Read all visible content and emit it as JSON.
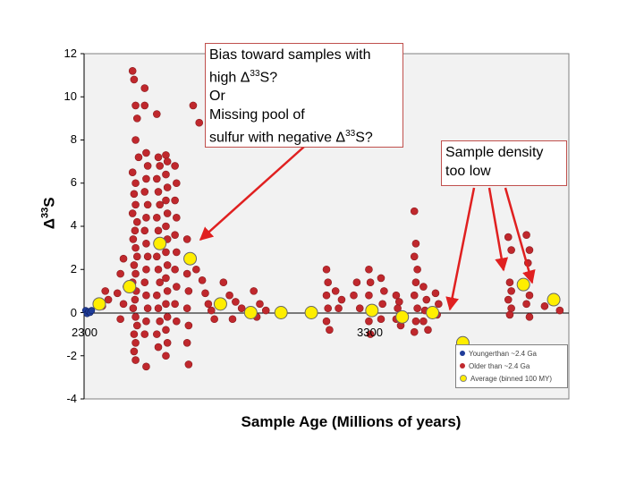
{
  "chart_data": {
    "type": "scatter",
    "xlabel": "Sample Age (Millions of years)",
    "ylabel_main": "Δ",
    "ylabel_sup": "33",
    "ylabel_tail": "S",
    "xlim": [
      2300,
      3900
    ],
    "ylim": [
      -4,
      12
    ],
    "yticks": [
      "12",
      "10",
      "8",
      "6",
      "4",
      "2",
      "0",
      "-2",
      "-4"
    ],
    "xtick_labels": [
      {
        "x": 2300,
        "label": "2300"
      },
      {
        "x": 3300,
        "label": "3300"
      }
    ],
    "grid": false,
    "legend_position": "bottom-right",
    "series": [
      {
        "name": "Youngerthan ~2.4 Ga",
        "color": "#1f3c99",
        "points": [
          [
            2305,
            0.1
          ],
          [
            2310,
            -0.05
          ],
          [
            2315,
            0.05
          ],
          [
            2320,
            0
          ],
          [
            2325,
            0.1
          ]
        ]
      },
      {
        "name": "Older than ~2.4 Ga",
        "color": "#c0282d",
        "points": [
          [
            2460,
            11.2
          ],
          [
            2465,
            10.8
          ],
          [
            2470,
            9.6
          ],
          [
            2475,
            9.0
          ],
          [
            2470,
            8.0
          ],
          [
            2480,
            7.2
          ],
          [
            2460,
            6.5
          ],
          [
            2470,
            6.0
          ],
          [
            2465,
            5.5
          ],
          [
            2470,
            5.0
          ],
          [
            2460,
            4.6
          ],
          [
            2475,
            4.2
          ],
          [
            2468,
            3.8
          ],
          [
            2462,
            3.4
          ],
          [
            2470,
            3.0
          ],
          [
            2475,
            2.6
          ],
          [
            2465,
            2.2
          ],
          [
            2470,
            1.8
          ],
          [
            2460,
            1.4
          ],
          [
            2472,
            1.0
          ],
          [
            2468,
            0.6
          ],
          [
            2462,
            0.2
          ],
          [
            2470,
            -0.2
          ],
          [
            2475,
            -0.6
          ],
          [
            2465,
            -1.0
          ],
          [
            2470,
            -1.4
          ],
          [
            2465,
            -1.8
          ],
          [
            2470,
            -2.2
          ],
          [
            2500,
            10.4
          ],
          [
            2500,
            9.6
          ],
          [
            2505,
            7.4
          ],
          [
            2510,
            6.8
          ],
          [
            2505,
            6.2
          ],
          [
            2500,
            5.6
          ],
          [
            2510,
            5.0
          ],
          [
            2505,
            4.4
          ],
          [
            2500,
            3.8
          ],
          [
            2505,
            3.2
          ],
          [
            2510,
            2.6
          ],
          [
            2505,
            2.0
          ],
          [
            2500,
            1.4
          ],
          [
            2505,
            0.8
          ],
          [
            2510,
            0.2
          ],
          [
            2505,
            -0.4
          ],
          [
            2500,
            -1.0
          ],
          [
            2505,
            -2.5
          ],
          [
            2540,
            9.2
          ],
          [
            2545,
            7.2
          ],
          [
            2550,
            6.8
          ],
          [
            2540,
            6.2
          ],
          [
            2545,
            5.6
          ],
          [
            2550,
            5.0
          ],
          [
            2540,
            4.4
          ],
          [
            2545,
            3.8
          ],
          [
            2550,
            3.2
          ],
          [
            2540,
            2.6
          ],
          [
            2545,
            2.0
          ],
          [
            2550,
            1.4
          ],
          [
            2540,
            0.8
          ],
          [
            2545,
            0.2
          ],
          [
            2550,
            -0.4
          ],
          [
            2540,
            -1.0
          ],
          [
            2545,
            -1.6
          ],
          [
            2570,
            7.3
          ],
          [
            2575,
            7.0
          ],
          [
            2570,
            6.4
          ],
          [
            2575,
            5.8
          ],
          [
            2570,
            5.2
          ],
          [
            2575,
            4.6
          ],
          [
            2570,
            4.0
          ],
          [
            2575,
            3.4
          ],
          [
            2570,
            2.8
          ],
          [
            2575,
            2.2
          ],
          [
            2570,
            1.6
          ],
          [
            2575,
            1.0
          ],
          [
            2570,
            0.4
          ],
          [
            2575,
            -0.2
          ],
          [
            2570,
            -0.8
          ],
          [
            2575,
            -1.4
          ],
          [
            2570,
            -2.0
          ],
          [
            2600,
            6.8
          ],
          [
            2605,
            6.0
          ],
          [
            2600,
            5.2
          ],
          [
            2605,
            4.4
          ],
          [
            2600,
            3.6
          ],
          [
            2605,
            2.8
          ],
          [
            2600,
            2.0
          ],
          [
            2605,
            1.2
          ],
          [
            2600,
            0.4
          ],
          [
            2605,
            -0.4
          ],
          [
            2640,
            3.4
          ],
          [
            2645,
            2.6
          ],
          [
            2640,
            1.8
          ],
          [
            2645,
            1.0
          ],
          [
            2640,
            0.2
          ],
          [
            2645,
            -0.6
          ],
          [
            2640,
            -1.4
          ],
          [
            2645,
            -2.4
          ],
          [
            2660,
            9.6
          ],
          [
            2680,
            8.8
          ],
          [
            2670,
            2.0
          ],
          [
            2690,
            1.5
          ],
          [
            2700,
            0.9
          ],
          [
            2710,
            0.4
          ],
          [
            2720,
            0.1
          ],
          [
            2730,
            -0.3
          ],
          [
            2430,
            2.5
          ],
          [
            2420,
            1.8
          ],
          [
            2440,
            1.2
          ],
          [
            2410,
            0.9
          ],
          [
            2430,
            0.4
          ],
          [
            2420,
            -0.3
          ],
          [
            2370,
            1.0
          ],
          [
            2380,
            0.6
          ],
          [
            2360,
            0.3
          ],
          [
            2760,
            1.4
          ],
          [
            2780,
            0.8
          ],
          [
            2800,
            0.5
          ],
          [
            2820,
            0.2
          ],
          [
            2790,
            -0.3
          ],
          [
            2860,
            1.0
          ],
          [
            2880,
            0.4
          ],
          [
            2900,
            0.1
          ],
          [
            2870,
            -0.2
          ],
          [
            3100,
            2.0
          ],
          [
            3105,
            1.4
          ],
          [
            3100,
            0.8
          ],
          [
            3105,
            0.2
          ],
          [
            3100,
            -0.4
          ],
          [
            3110,
            -0.8
          ],
          [
            3130,
            1.0
          ],
          [
            3150,
            0.6
          ],
          [
            3140,
            0.2
          ],
          [
            3200,
            1.4
          ],
          [
            3190,
            0.8
          ],
          [
            3210,
            0.2
          ],
          [
            3240,
            2.0
          ],
          [
            3245,
            1.4
          ],
          [
            3240,
            0.8
          ],
          [
            3245,
            0.2
          ],
          [
            3240,
            -0.4
          ],
          [
            3245,
            -1.0
          ],
          [
            3280,
            1.6
          ],
          [
            3290,
            1.0
          ],
          [
            3285,
            0.4
          ],
          [
            3280,
            -0.3
          ],
          [
            3330,
            0.8
          ],
          [
            3340,
            0.5
          ],
          [
            3335,
            0.2
          ],
          [
            3330,
            -0.3
          ],
          [
            3345,
            -0.6
          ],
          [
            3390,
            4.7
          ],
          [
            3395,
            3.2
          ],
          [
            3390,
            2.6
          ],
          [
            3400,
            2.0
          ],
          [
            3395,
            1.4
          ],
          [
            3390,
            0.8
          ],
          [
            3400,
            0.2
          ],
          [
            3395,
            -0.4
          ],
          [
            3390,
            -0.9
          ],
          [
            3420,
            1.2
          ],
          [
            3430,
            0.6
          ],
          [
            3425,
            0.1
          ],
          [
            3420,
            -0.4
          ],
          [
            3435,
            -0.8
          ],
          [
            3460,
            0.9
          ],
          [
            3470,
            0.4
          ],
          [
            3465,
            -0.1
          ],
          [
            3700,
            3.5
          ],
          [
            3710,
            2.9
          ],
          [
            3705,
            1.4
          ],
          [
            3710,
            1.0
          ],
          [
            3700,
            0.6
          ],
          [
            3710,
            0.2
          ],
          [
            3705,
            -0.1
          ],
          [
            3760,
            3.6
          ],
          [
            3770,
            2.9
          ],
          [
            3765,
            2.3
          ],
          [
            3770,
            0.8
          ],
          [
            3760,
            0.4
          ],
          [
            3770,
            -0.2
          ],
          [
            3820,
            0.3
          ],
          [
            3870,
            0.1
          ]
        ]
      },
      {
        "name": "Average (binned 100 MY)",
        "color": "#ffee00",
        "points": [
          [
            2350,
            0.4
          ],
          [
            2450,
            1.2
          ],
          [
            2550,
            3.2
          ],
          [
            2650,
            2.5
          ],
          [
            2750,
            0.4
          ],
          [
            2850,
            0.0
          ],
          [
            2950,
            0.0
          ],
          [
            3050,
            0.0
          ],
          [
            3250,
            0.1
          ],
          [
            3350,
            -0.2
          ],
          [
            3450,
            0.0
          ],
          [
            3550,
            -1.4
          ],
          [
            3750,
            1.3
          ],
          [
            3850,
            0.6
          ]
        ]
      }
    ]
  },
  "callouts": {
    "left": {
      "line1": "Bias toward samples with",
      "line2_pre": "high Δ",
      "line2_sup": "33",
      "line2_post": "S?",
      "line3": "Or",
      "line4": "Missing pool of",
      "line5_pre": "sulfur with negative Δ",
      "line5_sup": "33",
      "line5_post": "S?"
    },
    "right": {
      "line1": "Sample density",
      "line2": "too low"
    }
  },
  "legend": {
    "items": [
      "Youngerthan ~2.4 Ga",
      "Older than ~2.4 Ga",
      "Average (binned 100 MY)"
    ]
  },
  "colors": {
    "plot_bg": "#f2f2f2",
    "older": "#c0282d",
    "younger": "#1f3c99",
    "average": "#ffee00",
    "arrow": "#e02020"
  }
}
